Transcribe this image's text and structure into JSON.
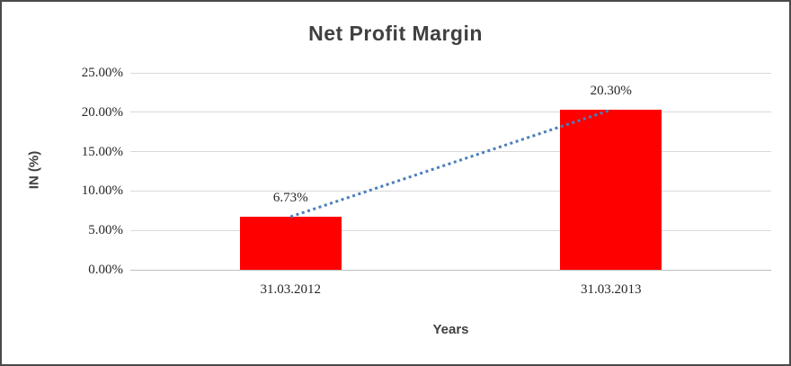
{
  "frame": {
    "background": "#ffffff",
    "border_color": "#4a4a4a"
  },
  "chart_data": {
    "type": "bar",
    "title": "Net Profit Margin",
    "xlabel": "Years",
    "ylabel": "IN (%)",
    "categories": [
      "31.03.2012",
      "31.03.2013"
    ],
    "series": [
      {
        "name": "Net Profit Margin",
        "values": [
          6.73,
          20.3
        ],
        "value_labels": [
          "6.73%",
          "20.30%"
        ],
        "color": "#ff0000"
      }
    ],
    "ylim": [
      0,
      25
    ],
    "yticks": [
      0,
      5,
      10,
      15,
      20,
      25
    ],
    "ytick_labels": [
      "0.00%",
      "5.00%",
      "10.00%",
      "15.00%",
      "20.00%",
      "25.00%"
    ],
    "grid": true,
    "legend": "none",
    "colors": {
      "bar": "#ff0000",
      "trendline": "#4a7ebb",
      "gridline": "#d9d9d9",
      "axis_line": "#bfbfbf",
      "title_text": "#404040",
      "tick_text": "#262626"
    },
    "trendline": {
      "style": "dotted",
      "color": "#4a7ebb",
      "from_value": 6.73,
      "to_value": 20.3
    }
  }
}
